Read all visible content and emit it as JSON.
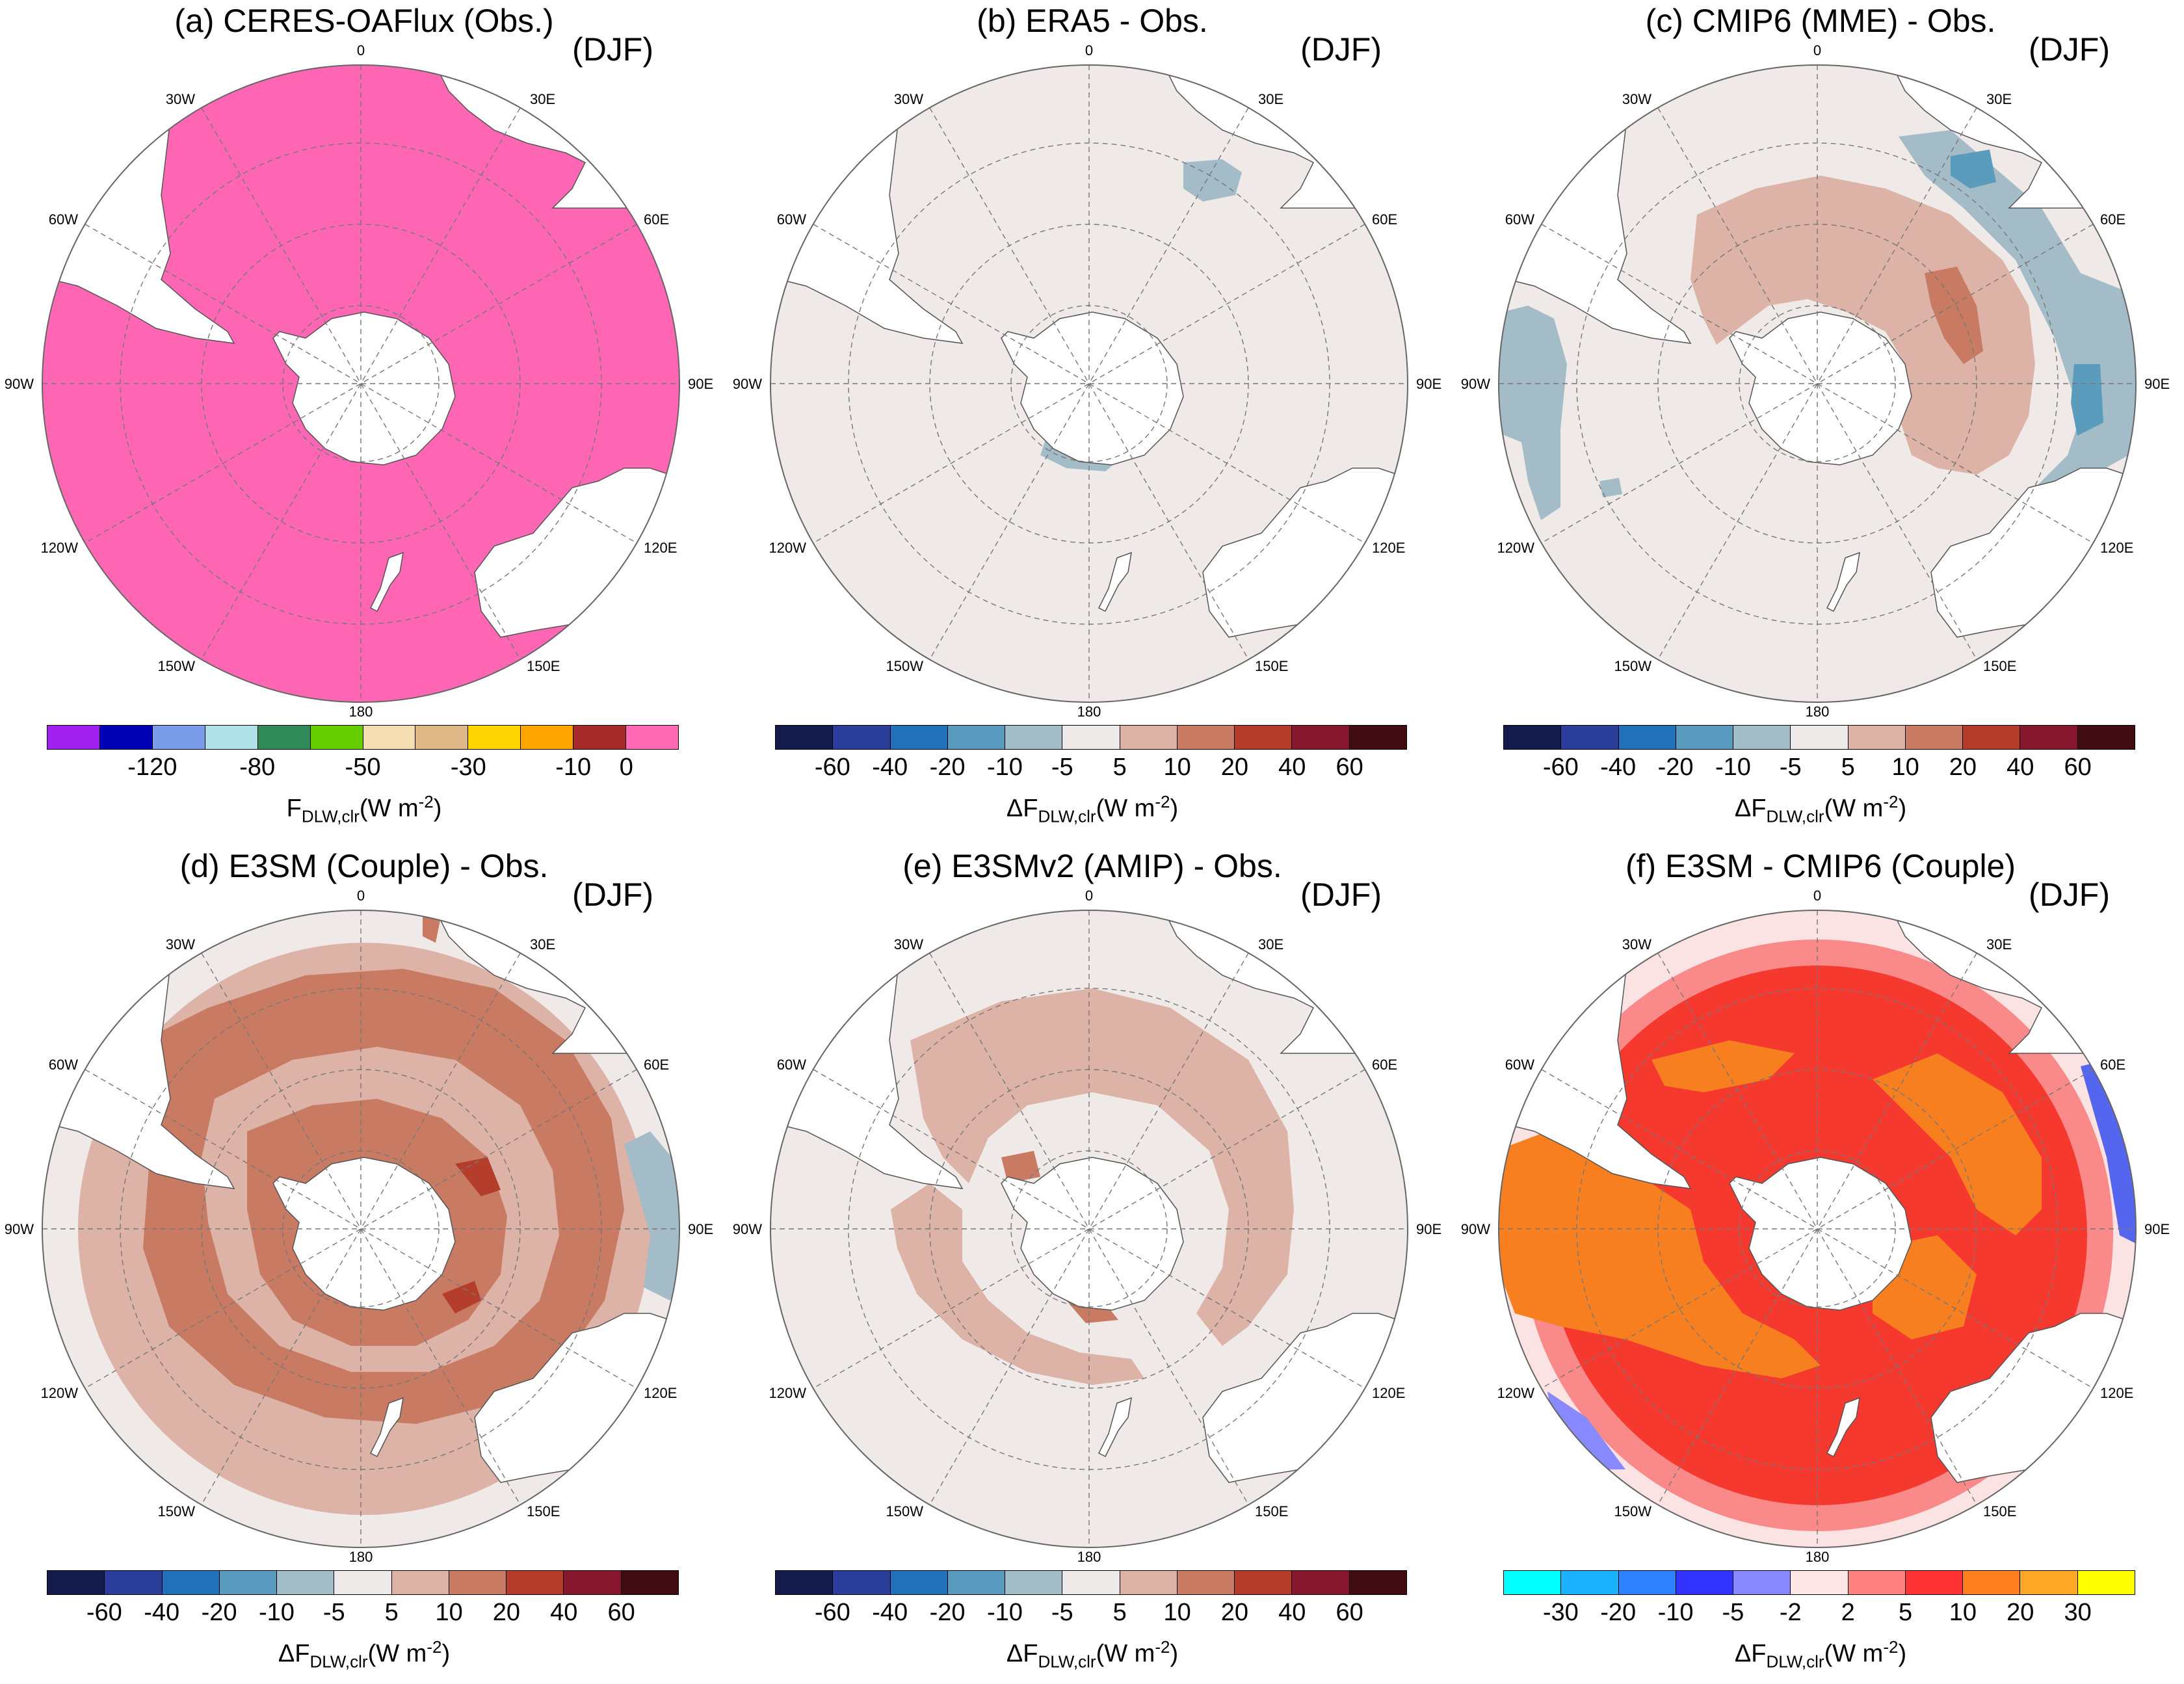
{
  "figure": {
    "longitude_labels": [
      "0",
      "30E",
      "60E",
      "90E",
      "120E",
      "150E",
      "180",
      "150W",
      "120W",
      "90W",
      "60W",
      "30W"
    ],
    "unit_label_abs": {
      "prefix": "F",
      "sub": "DLW,clr",
      "mid": "(W m",
      "sup": "-2",
      "end": ")"
    },
    "unit_label_diff": {
      "prefix": "ΔF",
      "sub": "DLW,clr",
      "mid": "(W m",
      "sup": "-2",
      "end": ")"
    },
    "colors": {
      "ocean_background": "#efe9e8",
      "land": "#ffffff",
      "abs_fill": "#ff66b3",
      "light_blue_bias": "#a4bcc8",
      "mid_blue_bias": "#5b9cbc",
      "dark_blue_bias": "#2f7aac",
      "light_warm_bias": "#dcb3a6",
      "mid_warm_bias": "#c97a62",
      "dark_warm_bias": "#b43d2b",
      "diff_pink": "#fa8a8a",
      "diff_red": "#f5392f",
      "diff_orange": "#f77f1f",
      "diff_lightpink": "#fbe3e3",
      "diff_blue": "#5566ee"
    }
  },
  "colorbars": {
    "abs": {
      "colors": [
        "#a020f0",
        "#0000b4",
        "#7b9ce8",
        "#afe0e6",
        "#2e8b57",
        "#66cd00",
        "#f5deb3",
        "#deb887",
        "#ffd700",
        "#ffa500",
        "#a52a2a",
        "#ff69b4"
      ],
      "labels": [
        "-120",
        "-80",
        "-50",
        "-30",
        "-10",
        "0"
      ]
    },
    "bias": {
      "colors": [
        "#141a4a",
        "#2a3d9a",
        "#2471bb",
        "#5a9bbf",
        "#a3bdc9",
        "#eeeaea",
        "#dbb2a5",
        "#c97a62",
        "#b33c2b",
        "#85162e",
        "#3f0d12"
      ],
      "labels": [
        "-60",
        "-40",
        "-20",
        "-10",
        "-5",
        "5",
        "10",
        "20",
        "40",
        "60"
      ]
    },
    "diff": {
      "colors": [
        "#00ffff",
        "#1ab1ff",
        "#2f82ff",
        "#3333ff",
        "#8888ff",
        "#ffe6e6",
        "#ff8080",
        "#ff3333",
        "#ff8020",
        "#ffa828",
        "#ffff00"
      ],
      "labels": [
        "-30",
        "-20",
        "-10",
        "-5",
        "-2",
        "2",
        "5",
        "10",
        "20",
        "30"
      ]
    }
  },
  "panels": [
    {
      "title": "(a) CERES-OAFlux (Obs.)",
      "season": "(DJF)",
      "colorbar": "abs",
      "unit": "unit_label_abs"
    },
    {
      "title": "(b) ERA5 - Obs.",
      "season": "(DJF)",
      "colorbar": "bias",
      "unit": "unit_label_diff"
    },
    {
      "title": "(c) CMIP6 (MME) - Obs.",
      "season": "(DJF)",
      "colorbar": "bias",
      "unit": "unit_label_diff"
    },
    {
      "title": "(d) E3SM (Couple) - Obs.",
      "season": "(DJF)",
      "colorbar": "bias",
      "unit": "unit_label_diff"
    },
    {
      "title": "(e) E3SMv2 (AMIP) - Obs.",
      "season": "(DJF)",
      "colorbar": "bias",
      "unit": "unit_label_diff"
    },
    {
      "title": "(f) E3SM - CMIP6 (Couple)",
      "season": "(DJF)",
      "colorbar": "diff",
      "unit": "unit_label_diff"
    }
  ]
}
